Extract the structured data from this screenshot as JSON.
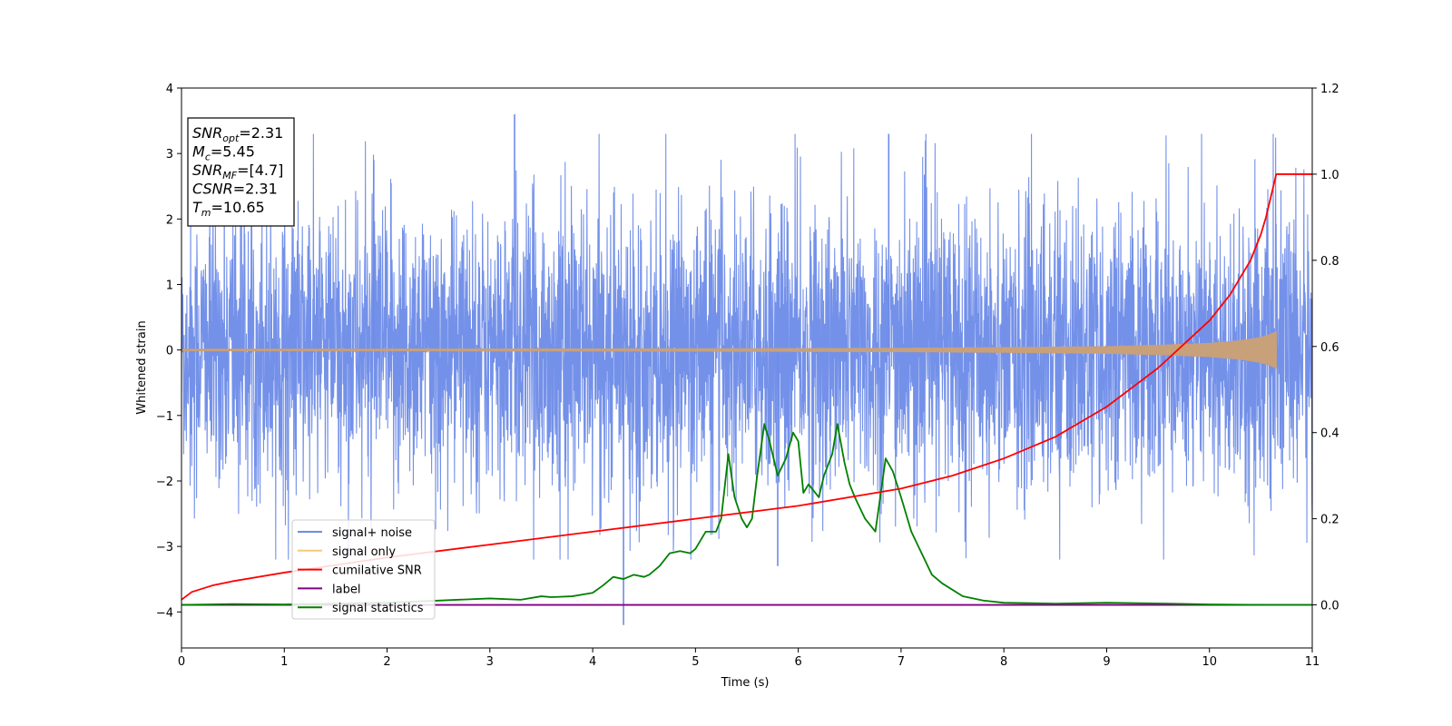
{
  "chart_data": {
    "type": "line",
    "title": "",
    "xlabel": "Time (s)",
    "ylabel": "Whitened strain",
    "y2label": "",
    "xlim": [
      0,
      11
    ],
    "ylim": [
      -4.55,
      4
    ],
    "y2lim": [
      -0.1,
      1.2
    ],
    "x_ticks": [
      0,
      1,
      2,
      3,
      4,
      5,
      6,
      7,
      8,
      9,
      10,
      11
    ],
    "y_ticks": [
      -4,
      -3,
      -2,
      -1,
      0,
      1,
      2,
      3,
      4
    ],
    "y2_ticks": [
      "0.0",
      "0.2",
      "0.4",
      "0.6",
      "0.8",
      "1.0",
      "1.2"
    ],
    "grid": false,
    "legend_placement": "lower-left",
    "legend": [
      "signal+ noise",
      "signal only",
      "cumilative SNR",
      "label",
      "signal statistics"
    ],
    "series": [
      {
        "name": "signal+ noise",
        "axis": "left",
        "color": "#6d8be8",
        "description_values": {
          "x_range": [
            0,
            11
          ],
          "typical_amplitude": 1.4,
          "max": 3.6,
          "min": -4.2
        }
      },
      {
        "name": "signal only",
        "axis": "left",
        "color": "#f5c87a",
        "envelope": {
          "x": [
            0,
            2,
            4,
            6,
            7,
            8,
            9,
            9.5,
            10,
            10.3,
            10.5,
            10.6,
            10.65
          ],
          "amp": [
            0.01,
            0.012,
            0.015,
            0.02,
            0.025,
            0.035,
            0.05,
            0.07,
            0.1,
            0.14,
            0.19,
            0.24,
            0.28
          ]
        }
      },
      {
        "name": "cumilative SNR",
        "axis": "right",
        "color": "#ff0000",
        "x": [
          0,
          0.1,
          0.3,
          0.5,
          1,
          2,
          3,
          4,
          5,
          5.5,
          6,
          6.5,
          7,
          7.5,
          8,
          8.5,
          9,
          9.5,
          10,
          10.2,
          10.4,
          10.5,
          10.55,
          10.6,
          10.65,
          11
        ],
        "y": [
          0.012,
          0.03,
          0.045,
          0.055,
          0.075,
          0.11,
          0.14,
          0.17,
          0.2,
          0.215,
          0.23,
          0.25,
          0.27,
          0.3,
          0.34,
          0.39,
          0.46,
          0.55,
          0.66,
          0.72,
          0.8,
          0.86,
          0.9,
          0.95,
          1.0,
          1.0
        ]
      },
      {
        "name": "label",
        "axis": "right",
        "color": "#800080",
        "x": [
          0,
          11
        ],
        "y": [
          0,
          0
        ]
      },
      {
        "name": "signal statistics",
        "axis": "right",
        "color": "#008000",
        "x": [
          0,
          0.5,
          1,
          1.5,
          2,
          2.5,
          3,
          3.3,
          3.5,
          3.6,
          3.8,
          4.0,
          4.1,
          4.2,
          4.3,
          4.4,
          4.5,
          4.55,
          4.65,
          4.75,
          4.85,
          4.95,
          5.0,
          5.05,
          5.1,
          5.2,
          5.25,
          5.32,
          5.38,
          5.45,
          5.5,
          5.55,
          5.6,
          5.67,
          5.72,
          5.8,
          5.88,
          5.95,
          6.0,
          6.05,
          6.1,
          6.2,
          6.25,
          6.33,
          6.38,
          6.45,
          6.5,
          6.55,
          6.65,
          6.75,
          6.85,
          6.92,
          7.0,
          7.1,
          7.2,
          7.3,
          7.4,
          7.6,
          7.8,
          8.0,
          8.5,
          9.0,
          9.3,
          9.6,
          10.0,
          10.5,
          11.0
        ],
        "y": [
          0.0,
          0.002,
          0.001,
          0.003,
          0.005,
          0.01,
          0.015,
          0.012,
          0.02,
          0.018,
          0.02,
          0.028,
          0.045,
          0.065,
          0.06,
          0.07,
          0.065,
          0.07,
          0.09,
          0.12,
          0.125,
          0.12,
          0.13,
          0.15,
          0.17,
          0.17,
          0.2,
          0.35,
          0.25,
          0.2,
          0.18,
          0.2,
          0.3,
          0.42,
          0.38,
          0.3,
          0.34,
          0.4,
          0.38,
          0.26,
          0.28,
          0.25,
          0.3,
          0.35,
          0.42,
          0.33,
          0.28,
          0.25,
          0.2,
          0.17,
          0.34,
          0.31,
          0.25,
          0.17,
          0.12,
          0.07,
          0.05,
          0.02,
          0.01,
          0.005,
          0.003,
          0.005,
          0.004,
          0.003,
          0.001,
          0.0,
          0.0
        ]
      }
    ],
    "annotations": [
      {
        "base": "SNR",
        "sub": "opt",
        "value": "=2.31"
      },
      {
        "base": "M",
        "sub": "c",
        "value": "=5.45"
      },
      {
        "base": "SNR",
        "sub": "MF",
        "value": "=[4.7]"
      },
      {
        "base": "CSNR",
        "sub": "",
        "value": "=2.31"
      },
      {
        "base": "T",
        "sub": "m",
        "value": "=10.65"
      }
    ]
  },
  "colors": {
    "noise": "#6d8be8",
    "signal": "#f5c87a",
    "signal_overlap": "#c8a07a",
    "cumulative": "#ff0000",
    "label": "#800080",
    "statistics": "#008000"
  }
}
